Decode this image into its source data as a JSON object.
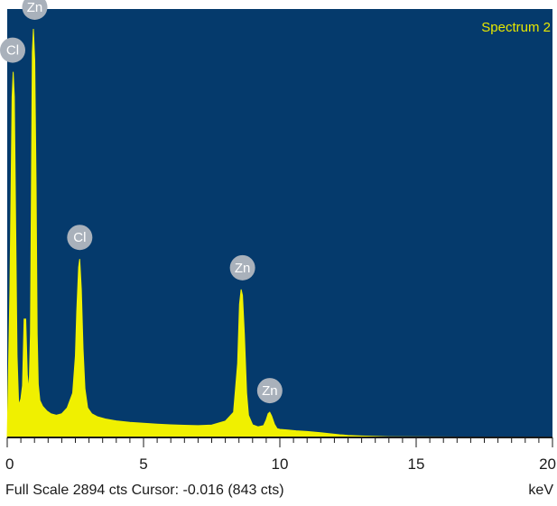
{
  "chart_data": {
    "type": "area",
    "title": "Spectrum 2",
    "xlabel": "keV",
    "ylabel": "",
    "xlim": [
      0,
      20
    ],
    "ylim": [
      0,
      2894
    ],
    "x_ticks": [
      0,
      5,
      10,
      15,
      20
    ],
    "x_tick_labels": [
      "0",
      "5",
      "10",
      "15",
      "20"
    ],
    "series": [
      {
        "x": [
          0.0,
          0.1,
          0.18,
          0.22,
          0.26,
          0.3,
          0.36,
          0.42,
          0.5,
          0.56,
          0.62,
          0.68,
          0.74,
          0.8,
          0.85,
          0.88,
          0.92,
          0.96,
          1.01,
          1.06,
          1.1,
          1.14,
          1.2,
          1.3,
          1.45,
          1.6,
          1.8,
          2.0,
          2.2,
          2.4,
          2.5,
          2.55,
          2.62,
          2.66,
          2.72,
          2.78,
          2.85,
          2.95,
          3.1,
          3.3,
          3.6,
          4.0,
          4.5,
          5.0,
          5.5,
          6.0,
          6.5,
          7.0,
          7.5,
          8.0,
          8.3,
          8.45,
          8.52,
          8.58,
          8.63,
          8.7,
          8.78,
          8.85,
          9.0,
          9.2,
          9.4,
          9.5,
          9.57,
          9.63,
          9.7,
          9.8,
          9.9,
          10.0,
          10.3,
          10.6,
          11.0,
          11.5,
          11.8,
          12.0,
          12.2,
          12.5,
          13.0,
          14.0,
          20.0
        ],
        "y": [
          0,
          1000,
          2300,
          2470,
          2300,
          1600,
          550,
          220,
          260,
          350,
          800,
          800,
          420,
          320,
          700,
          1500,
          2600,
          2760,
          2550,
          1700,
          700,
          360,
          250,
          210,
          180,
          160,
          150,
          160,
          200,
          300,
          550,
          850,
          1150,
          1205,
          1000,
          600,
          330,
          200,
          160,
          140,
          125,
          112,
          102,
          96,
          90,
          85,
          82,
          80,
          84,
          110,
          170,
          500,
          900,
          1000,
          960,
          700,
          300,
          150,
          85,
          72,
          80,
          120,
          160,
          170,
          145,
          90,
          60,
          55,
          50,
          45,
          40,
          32,
          26,
          22,
          18,
          14,
          10,
          5,
          0
        ]
      }
    ],
    "peak_labels": [
      {
        "element": "Cl",
        "x": 0.18,
        "y": 2470
      },
      {
        "element": "Zn",
        "x": 1.01,
        "y": 2760
      },
      {
        "element": "Cl",
        "x": 2.66,
        "y": 1205
      },
      {
        "element": "Zn",
        "x": 8.63,
        "y": 1000
      },
      {
        "element": "Zn",
        "x": 9.63,
        "y": 170
      }
    ]
  },
  "colors": {
    "background": "#053a6c",
    "spectrum": "#f0f000",
    "label_fill": "#a9b1bb",
    "label_text": "#ffffff",
    "title": "#e8e800"
  },
  "footer": {
    "left": "Full Scale 2894 cts Cursor: -0.016  (843 cts)",
    "right": "keV"
  }
}
